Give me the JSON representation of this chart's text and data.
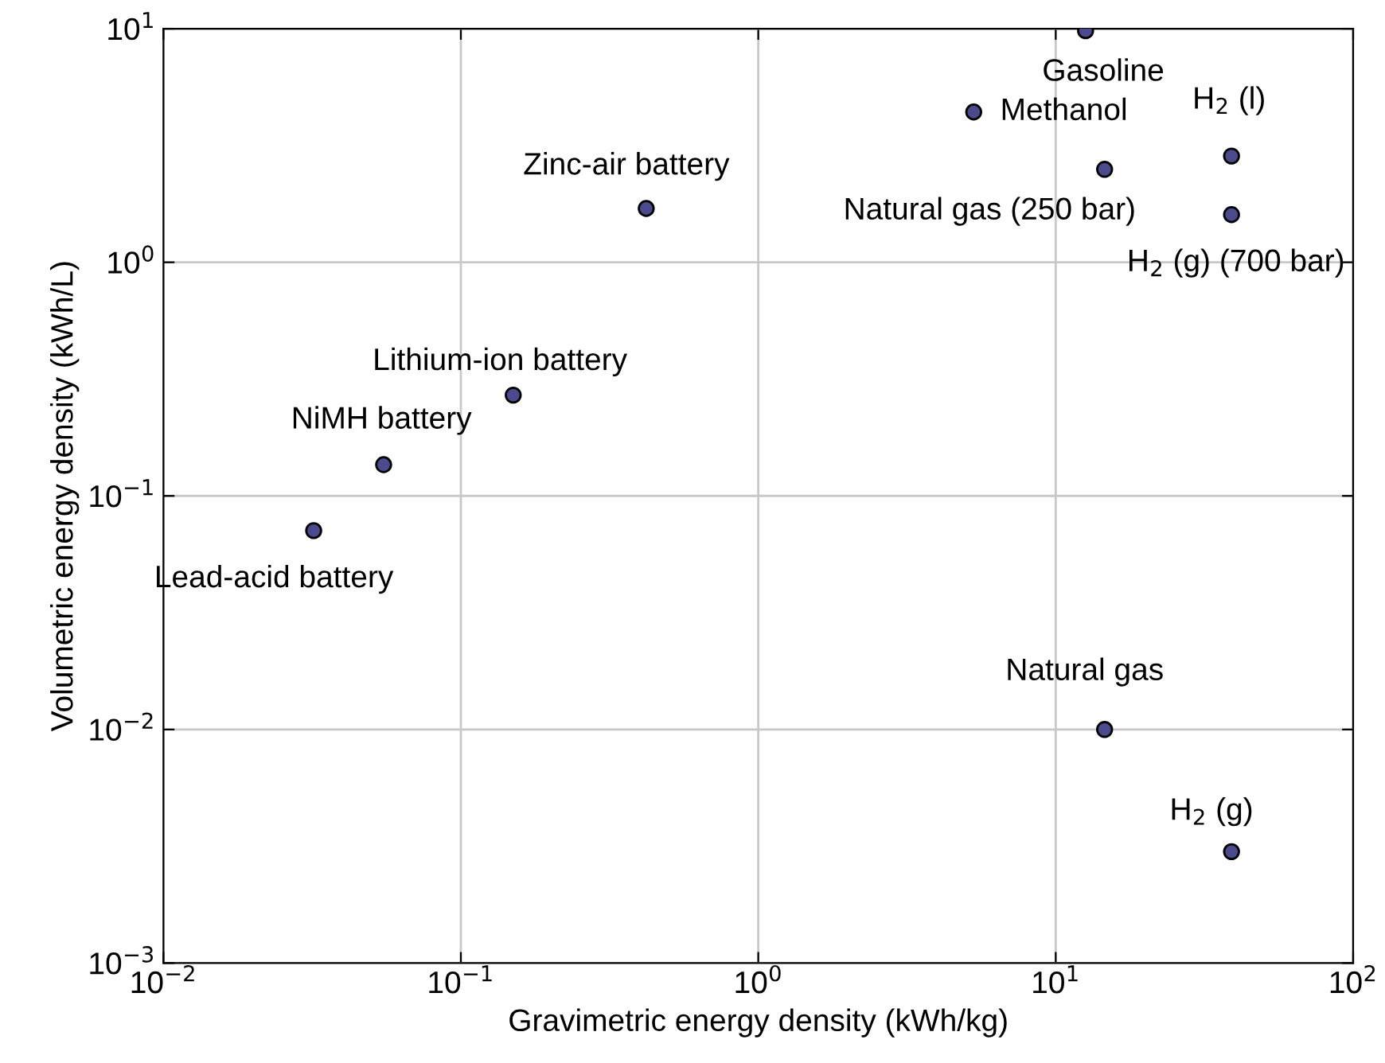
{
  "chart_data": {
    "type": "scatter",
    "xlabel": "Gravimetric energy density (kWh/kg)",
    "ylabel": "Volumetric energy density (kWh/L)",
    "x": [
      12.6,
      5.3,
      39,
      14.6,
      39,
      0.42,
      0.15,
      0.055,
      0.032,
      14.6,
      39
    ],
    "series": [
      {
        "color": "#4b4a8c",
        "values": [
          9.8,
          4.4,
          2.85,
          2.5,
          1.6,
          1.7,
          0.27,
          0.136,
          0.071,
          0.01,
          0.003
        ]
      }
    ],
    "annotations": [
      {
        "text": "Gasoline",
        "x": 12.6,
        "y": 9.8
      },
      {
        "text": "Methanol",
        "x": 5.3,
        "y": 4.4
      },
      {
        "text": "H$_{2}$ (l)",
        "x": 39,
        "y": 2.85
      },
      {
        "text": "Natural gas (250 bar)",
        "x": 14.6,
        "y": 2.5
      },
      {
        "text": "H$_{2}$ (g) (700 bar)",
        "x": 39,
        "y": 1.6
      },
      {
        "text": "Zinc-air battery",
        "x": 0.42,
        "y": 1.7
      },
      {
        "text": "Lithium-ion battery",
        "x": 0.15,
        "y": 0.27
      },
      {
        "text": "NiMH battery",
        "x": 0.055,
        "y": 0.136
      },
      {
        "text": "Lead-acid battery",
        "x": 0.032,
        "y": 0.071
      },
      {
        "text": "Natural gas",
        "x": 14.6,
        "y": 0.01
      },
      {
        "text": "H$_{2}$ (g)",
        "x": 39,
        "y": 0.003
      }
    ],
    "log": "xy",
    "xlim": [
      0.01,
      100
    ],
    "ylim": [
      0.001,
      10
    ],
    "xticks": [
      {
        "value": 0.01,
        "label": "10$^{−2}$"
      },
      {
        "value": 0.1,
        "label": "10$^{−1}$"
      },
      {
        "value": 1,
        "label": "10$^{0}$"
      },
      {
        "value": 10,
        "label": "10$^{1}$"
      },
      {
        "value": 100,
        "label": "10$^{2}$"
      }
    ],
    "yticks": [
      {
        "value": 0.001,
        "label": "10$^{−3}$"
      },
      {
        "value": 0.01,
        "label": "10$^{−2}$"
      },
      {
        "value": 0.1,
        "label": "10$^{−1}$"
      },
      {
        "value": 1,
        "label": "10$^{0}$"
      },
      {
        "value": 10,
        "label": "10$^{1}$"
      }
    ],
    "grid": true,
    "marker": "circle"
  }
}
